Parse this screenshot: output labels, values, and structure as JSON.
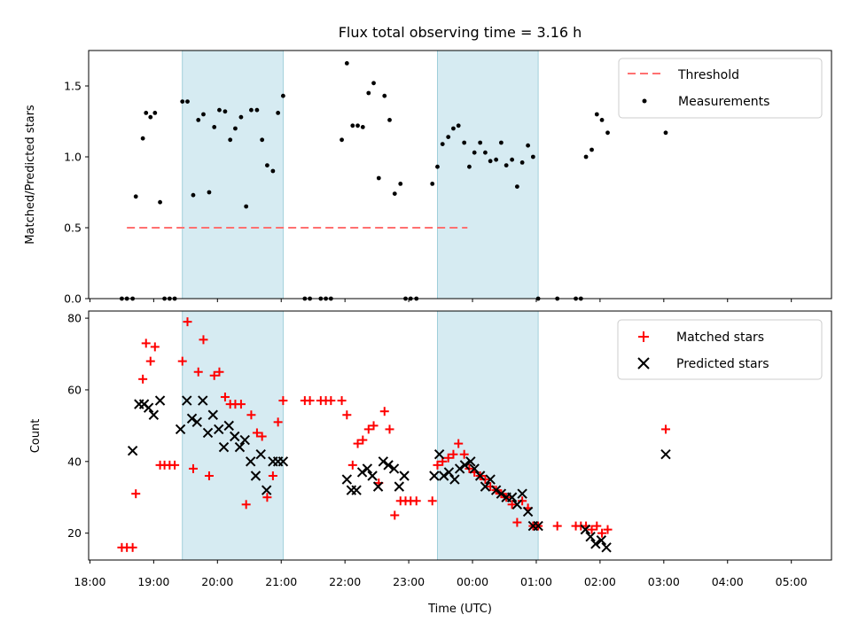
{
  "chart_data": [
    {
      "type": "scatter",
      "title": "Flux total observing time = 3.16 h",
      "xlabel": "",
      "ylabel": "Matched/Predicted stars",
      "ylim": [
        0,
        1.75
      ],
      "yticks": [
        0.0,
        0.5,
        1.0,
        1.5
      ],
      "ytick_labels": [
        "0.0",
        "0.5",
        "1.0",
        "1.5"
      ],
      "threshold": 0.5,
      "threshold_xrange": [
        18.58,
        23.92
      ],
      "shaded_intervals": [
        [
          19.45,
          21.03
        ],
        [
          23.45,
          25.03
        ]
      ],
      "legend": {
        "position": "upper right",
        "entries": [
          "Threshold",
          "Measurements"
        ]
      },
      "series": [
        {
          "name": "Measurements",
          "x": [
            18.5,
            18.58,
            18.67,
            18.72,
            18.83,
            18.88,
            18.95,
            19.02,
            19.1,
            19.17,
            19.25,
            19.33,
            19.45,
            19.53,
            19.62,
            19.7,
            19.78,
            19.87,
            19.95,
            20.03,
            20.12,
            20.2,
            20.28,
            20.37,
            20.45,
            20.53,
            20.62,
            20.7,
            20.78,
            20.87,
            20.95,
            21.03,
            21.37,
            21.45,
            21.62,
            21.7,
            21.78,
            21.95,
            22.03,
            22.12,
            22.2,
            22.28,
            22.37,
            22.45,
            22.53,
            22.62,
            22.7,
            22.78,
            22.87,
            22.95,
            23.03,
            23.12,
            23.37,
            23.45,
            23.53,
            23.62,
            23.7,
            23.78,
            23.87,
            23.95,
            24.03,
            24.12,
            24.2,
            24.28,
            24.37,
            24.45,
            24.53,
            24.62,
            24.7,
            24.78,
            24.87,
            24.95,
            25.03,
            25.33,
            25.62,
            25.7,
            25.78,
            25.87,
            25.95,
            26.03,
            26.12,
            27.03
          ],
          "y": [
            0.0,
            0.0,
            0.0,
            0.72,
            1.13,
            1.31,
            1.28,
            1.31,
            0.68,
            0.0,
            0.0,
            0.0,
            1.39,
            1.39,
            0.73,
            1.26,
            1.3,
            0.75,
            1.21,
            1.33,
            1.32,
            1.12,
            1.2,
            1.28,
            0.65,
            1.33,
            1.33,
            1.12,
            0.94,
            0.9,
            1.31,
            1.43,
            0.0,
            0.0,
            0.0,
            0.0,
            0.0,
            1.12,
            1.66,
            1.22,
            1.22,
            1.21,
            1.45,
            1.52,
            0.85,
            1.43,
            1.26,
            0.74,
            0.81,
            0.0,
            0.0,
            0.0,
            0.81,
            0.93,
            1.09,
            1.14,
            1.2,
            1.22,
            1.1,
            0.93,
            1.03,
            1.1,
            1.03,
            0.97,
            0.98,
            1.1,
            0.94,
            0.98,
            0.79,
            0.96,
            1.08,
            1.0,
            0.0,
            0.0,
            0.0,
            0.0,
            1.0,
            1.05,
            1.3,
            1.26,
            1.17,
            1.17
          ]
        }
      ]
    },
    {
      "type": "scatter",
      "xlabel": "Time (UTC)",
      "ylabel": "Count",
      "ylim": [
        12.5,
        82
      ],
      "yticks": [
        20,
        40,
        60,
        80
      ],
      "ytick_labels": [
        "20",
        "40",
        "60",
        "80"
      ],
      "xlim": [
        17.98,
        29.63
      ],
      "xticks": [
        18,
        19,
        20,
        21,
        22,
        23,
        24,
        25,
        26,
        27,
        28,
        29
      ],
      "xtick_labels": [
        "18:00",
        "19:00",
        "20:00",
        "21:00",
        "22:00",
        "23:00",
        "00:00",
        "01:00",
        "02:00",
        "03:00",
        "04:00",
        "05:00"
      ],
      "shaded_intervals": [
        [
          19.45,
          21.03
        ],
        [
          23.45,
          25.03
        ]
      ],
      "legend": {
        "position": "upper right",
        "entries": [
          "Matched stars",
          "Predicted stars"
        ]
      },
      "series": [
        {
          "name": "Matched stars",
          "x": [
            18.5,
            18.58,
            18.67,
            18.72,
            18.83,
            18.88,
            18.95,
            19.02,
            19.1,
            19.17,
            19.25,
            19.33,
            19.45,
            19.53,
            19.62,
            19.7,
            19.78,
            19.87,
            19.95,
            20.03,
            20.12,
            20.2,
            20.28,
            20.37,
            20.45,
            20.53,
            20.62,
            20.7,
            20.78,
            20.87,
            20.95,
            21.03,
            21.37,
            21.45,
            21.62,
            21.7,
            21.78,
            21.95,
            22.03,
            22.12,
            22.2,
            22.28,
            22.37,
            22.45,
            22.53,
            22.62,
            22.7,
            22.78,
            22.87,
            22.95,
            23.03,
            23.12,
            23.37,
            23.45,
            23.53,
            23.62,
            23.7,
            23.78,
            23.87,
            23.95,
            24.03,
            24.12,
            24.2,
            24.28,
            24.37,
            24.45,
            24.53,
            24.62,
            24.7,
            24.78,
            24.87,
            24.95,
            25.03,
            25.33,
            25.62,
            25.7,
            25.78,
            25.87,
            25.95,
            26.03,
            26.12,
            27.03
          ],
          "y": [
            16,
            16,
            16,
            31,
            63,
            73,
            68,
            72,
            39,
            39,
            39,
            39,
            68,
            79,
            38,
            65,
            74,
            36,
            64,
            65,
            58,
            56,
            56,
            56,
            28,
            53,
            48,
            47,
            30,
            36,
            51,
            57,
            57,
            57,
            57,
            57,
            57,
            57,
            53,
            39,
            45,
            46,
            49,
            50,
            34,
            54,
            49,
            25,
            29,
            29,
            29,
            29,
            29,
            39,
            40,
            41,
            42,
            45,
            42,
            38,
            37,
            36,
            35,
            33,
            32,
            31,
            30,
            28,
            23,
            29,
            27,
            22,
            22,
            22,
            22,
            22,
            22,
            21,
            22,
            20,
            21,
            49
          ],
          "color": "#ff0000"
        },
        {
          "name": "Predicted stars",
          "x": [
            18.67,
            18.77,
            18.85,
            18.92,
            19.0,
            19.1,
            19.42,
            19.52,
            19.6,
            19.68,
            19.77,
            19.85,
            19.93,
            20.02,
            20.1,
            20.18,
            20.27,
            20.35,
            20.43,
            20.52,
            20.6,
            20.68,
            20.77,
            20.87,
            20.95,
            21.03,
            22.03,
            22.1,
            22.18,
            22.27,
            22.35,
            22.43,
            22.52,
            22.6,
            22.68,
            22.77,
            22.85,
            22.93,
            23.4,
            23.48,
            23.55,
            23.63,
            23.72,
            23.8,
            23.88,
            23.97,
            24.03,
            24.12,
            24.2,
            24.28,
            24.37,
            24.45,
            24.53,
            24.62,
            24.7,
            24.78,
            24.87,
            24.95,
            25.03,
            25.77,
            25.85,
            25.93,
            26.02,
            26.1,
            27.03
          ],
          "y": [
            43,
            56,
            56,
            55,
            53,
            57,
            49,
            57,
            52,
            51,
            57,
            48,
            53,
            49,
            44,
            50,
            47,
            44,
            46,
            40,
            36,
            42,
            32,
            40,
            40,
            40,
            35,
            32,
            32,
            37,
            38,
            36,
            33,
            40,
            39,
            38,
            33,
            36,
            36,
            42,
            36,
            37,
            35,
            38,
            39,
            40,
            38,
            36,
            33,
            35,
            32,
            31,
            30,
            30,
            28,
            31,
            26,
            22,
            22,
            21,
            19,
            17,
            18,
            16,
            42
          ],
          "color": "#000000"
        }
      ]
    }
  ]
}
